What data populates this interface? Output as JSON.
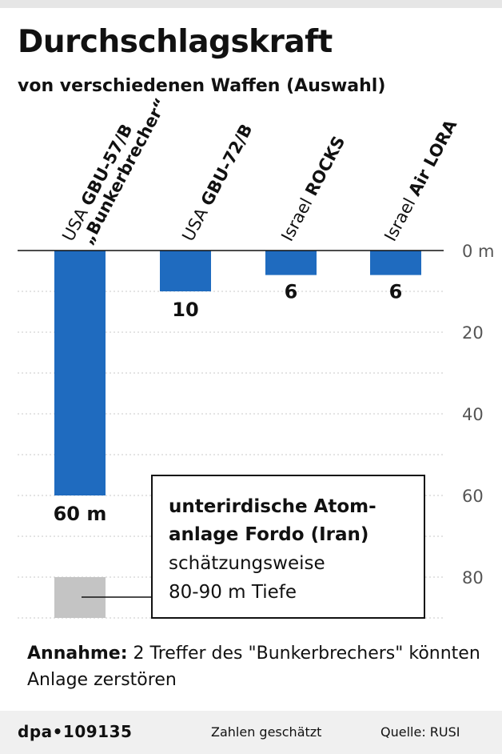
{
  "header": {
    "title": "Durchschlagskraft",
    "subtitle": "von verschiedenen Waffen (Auswahl)"
  },
  "chart_data": {
    "type": "bar",
    "orientation": "downward",
    "categories": [
      {
        "country": "USA",
        "name": "GBU-57/B",
        "name2": "„Bunkerbrecher“"
      },
      {
        "country": "USA",
        "name": "GBU-72/B",
        "name2": ""
      },
      {
        "country": "Israel",
        "name": "ROCKS",
        "name2": ""
      },
      {
        "country": "Israel",
        "name": "Air LORA",
        "name2": ""
      }
    ],
    "values": [
      60,
      10,
      6,
      6
    ],
    "value_labels": [
      "60 m",
      "10",
      "6",
      "6"
    ],
    "unit": "m",
    "ylim": [
      0,
      90
    ],
    "yticks": [
      0,
      20,
      40,
      60,
      80
    ],
    "ytick_labels": [
      "0 m",
      "20",
      "40",
      "60",
      "80"
    ],
    "grid": true,
    "bar_color": "#1f6bbf",
    "target": {
      "range": [
        80,
        90
      ],
      "color": "#c4c4c4",
      "title_line1": "unterirdische Atom-",
      "title_line2": "anlage Fordo (Iran)",
      "desc_line1": "schätzungsweise",
      "desc_line2": "80-90 m Tiefe"
    }
  },
  "footnote": {
    "label": "Annahme:",
    "text": " 2 Treffer des \"Bunkerbrechers\" könnten Anlage zerstören"
  },
  "footer": {
    "agency": "dpa•109135",
    "note": "Zahlen geschätzt",
    "source": "Quelle: RUSI"
  }
}
